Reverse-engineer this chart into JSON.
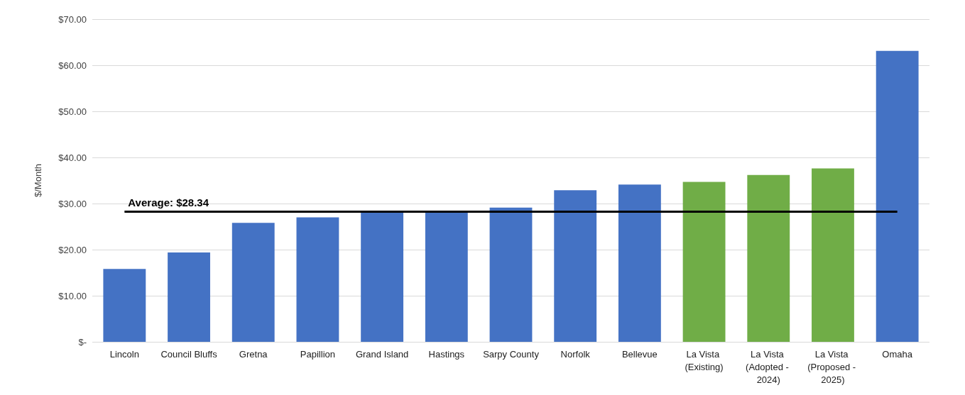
{
  "chart_data": {
    "type": "bar",
    "ylabel": "$/Month",
    "categories": [
      "Lincoln",
      "Council Bluffs",
      "Gretna",
      "Papillion",
      "Grand Island",
      "Hastings",
      "Sarpy County",
      "Norfolk",
      "Bellevue",
      "La Vista (Existing)",
      "La Vista (Adopted - 2024)",
      "La Vista (Proposed - 2025)",
      "Omaha"
    ],
    "values": [
      15.8,
      19.4,
      25.8,
      27.0,
      28.3,
      28.3,
      29.1,
      32.9,
      34.1,
      34.7,
      36.2,
      37.6,
      63.1
    ],
    "colors": [
      "#4472c4",
      "#4472c4",
      "#4472c4",
      "#4472c4",
      "#4472c4",
      "#4472c4",
      "#4472c4",
      "#4472c4",
      "#4472c4",
      "#70ad47",
      "#70ad47",
      "#70ad47",
      "#4472c4"
    ],
    "ylim": [
      0,
      70
    ],
    "yticks": [
      {
        "value": 0,
        "label": "$-"
      },
      {
        "value": 10,
        "label": "$10.00"
      },
      {
        "value": 20,
        "label": "$20.00"
      },
      {
        "value": 30,
        "label": "$30.00"
      },
      {
        "value": 40,
        "label": "$40.00"
      },
      {
        "value": 50,
        "label": "$50.00"
      },
      {
        "value": 60,
        "label": "$60.00"
      },
      {
        "value": 70,
        "label": "$70.00"
      }
    ],
    "ref_lines": [
      {
        "axis": "y",
        "value": 28.34,
        "label": "Average: $28.34",
        "color": "#000000"
      }
    ],
    "grid": "y"
  }
}
